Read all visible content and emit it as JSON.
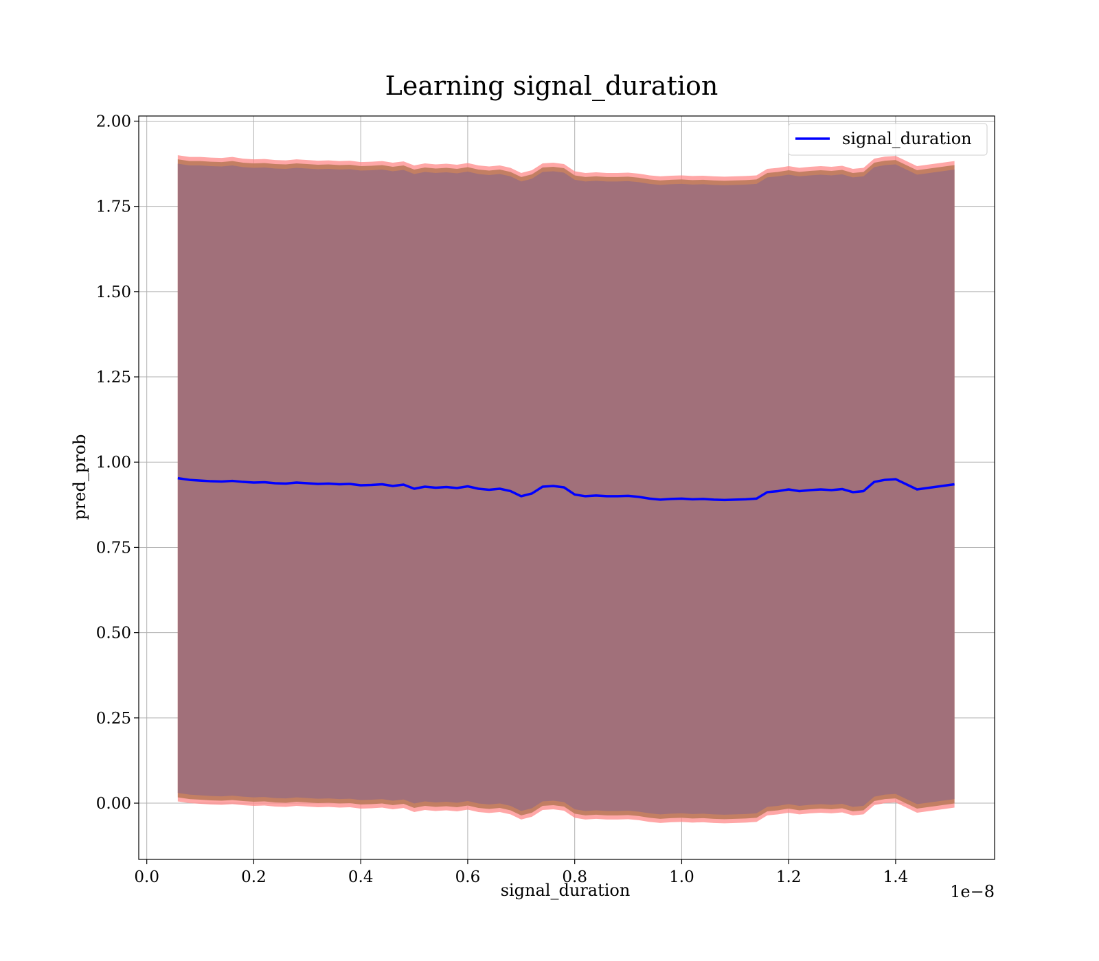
{
  "chart_data": {
    "type": "line",
    "title": "Learning signal_duration",
    "xlabel": "signal_duration",
    "ylabel": "pred_prob",
    "x_offset_label": "1e−8",
    "xlim": [
      -0.015,
      1.585
    ],
    "ylim": [
      -0.165,
      2.015
    ],
    "x_ticks": [
      0.0,
      0.2,
      0.4,
      0.6,
      0.8,
      1.0,
      1.2,
      1.4
    ],
    "x_tick_labels": [
      "0.0",
      "0.2",
      "0.4",
      "0.6",
      "0.8",
      "1.0",
      "1.2",
      "1.4"
    ],
    "y_ticks": [
      0.0,
      0.25,
      0.5,
      0.75,
      1.0,
      1.25,
      1.5,
      1.75,
      2.0
    ],
    "y_tick_labels": [
      "0.00",
      "0.25",
      "0.50",
      "0.75",
      "1.00",
      "1.25",
      "1.50",
      "1.75",
      "2.00"
    ],
    "grid": true,
    "legend_position": "top-right",
    "series": [
      {
        "name": "signal_duration",
        "color": "#0000ff",
        "x": [
          0.058,
          0.08,
          0.1,
          0.12,
          0.14,
          0.16,
          0.18,
          0.2,
          0.22,
          0.24,
          0.26,
          0.28,
          0.3,
          0.32,
          0.34,
          0.36,
          0.38,
          0.4,
          0.42,
          0.44,
          0.46,
          0.48,
          0.5,
          0.52,
          0.54,
          0.56,
          0.58,
          0.6,
          0.62,
          0.64,
          0.66,
          0.68,
          0.7,
          0.72,
          0.74,
          0.76,
          0.78,
          0.8,
          0.82,
          0.84,
          0.86,
          0.88,
          0.9,
          0.92,
          0.94,
          0.96,
          0.98,
          1.0,
          1.02,
          1.04,
          1.06,
          1.08,
          1.1,
          1.12,
          1.14,
          1.16,
          1.18,
          1.2,
          1.22,
          1.24,
          1.26,
          1.28,
          1.3,
          1.32,
          1.34,
          1.36,
          1.38,
          1.4,
          1.44,
          1.51
        ],
        "y": [
          0.953,
          0.948,
          0.946,
          0.944,
          0.943,
          0.945,
          0.942,
          0.94,
          0.941,
          0.938,
          0.937,
          0.94,
          0.938,
          0.936,
          0.937,
          0.935,
          0.936,
          0.932,
          0.933,
          0.935,
          0.93,
          0.934,
          0.922,
          0.928,
          0.925,
          0.927,
          0.924,
          0.929,
          0.922,
          0.919,
          0.922,
          0.915,
          0.9,
          0.908,
          0.928,
          0.93,
          0.926,
          0.905,
          0.9,
          0.902,
          0.9,
          0.9,
          0.901,
          0.898,
          0.893,
          0.89,
          0.892,
          0.893,
          0.891,
          0.892,
          0.89,
          0.889,
          0.89,
          0.891,
          0.893,
          0.912,
          0.915,
          0.92,
          0.915,
          0.918,
          0.92,
          0.918,
          0.921,
          0.912,
          0.915,
          0.942,
          0.948,
          0.95,
          0.92,
          0.935
        ],
        "band_outer_upper": [
          1.9,
          1.895,
          1.895,
          1.893,
          1.892,
          1.895,
          1.89,
          1.888,
          1.889,
          1.886,
          1.885,
          1.888,
          1.886,
          1.884,
          1.885,
          1.883,
          1.884,
          1.88,
          1.881,
          1.883,
          1.878,
          1.882,
          1.87,
          1.876,
          1.873,
          1.875,
          1.872,
          1.877,
          1.87,
          1.867,
          1.87,
          1.863,
          1.848,
          1.856,
          1.876,
          1.878,
          1.874,
          1.853,
          1.848,
          1.85,
          1.848,
          1.848,
          1.849,
          1.846,
          1.841,
          1.838,
          1.84,
          1.841,
          1.839,
          1.84,
          1.838,
          1.837,
          1.838,
          1.839,
          1.841,
          1.86,
          1.863,
          1.868,
          1.863,
          1.866,
          1.868,
          1.866,
          1.869,
          1.86,
          1.863,
          1.89,
          1.896,
          1.898,
          1.868,
          1.883
        ],
        "band_outer_lower": [
          0.005,
          0.0,
          -0.002,
          -0.004,
          -0.005,
          -0.003,
          -0.006,
          -0.008,
          -0.007,
          -0.01,
          -0.011,
          -0.008,
          -0.01,
          -0.012,
          -0.011,
          -0.013,
          -0.012,
          -0.016,
          -0.015,
          -0.013,
          -0.018,
          -0.014,
          -0.026,
          -0.02,
          -0.023,
          -0.021,
          -0.024,
          -0.019,
          -0.026,
          -0.029,
          -0.026,
          -0.033,
          -0.048,
          -0.04,
          -0.02,
          -0.018,
          -0.022,
          -0.043,
          -0.048,
          -0.046,
          -0.048,
          -0.048,
          -0.047,
          -0.05,
          -0.055,
          -0.058,
          -0.056,
          -0.055,
          -0.057,
          -0.056,
          -0.058,
          -0.059,
          -0.058,
          -0.057,
          -0.055,
          -0.036,
          -0.033,
          -0.028,
          -0.033,
          -0.03,
          -0.028,
          -0.03,
          -0.027,
          -0.036,
          -0.033,
          -0.006,
          0.0,
          0.002,
          -0.028,
          -0.013
        ],
        "band_inner_upper": [
          1.875,
          1.87,
          1.87,
          1.868,
          1.867,
          1.87,
          1.865,
          1.863,
          1.864,
          1.861,
          1.86,
          1.863,
          1.861,
          1.859,
          1.86,
          1.858,
          1.859,
          1.855,
          1.856,
          1.858,
          1.853,
          1.857,
          1.845,
          1.851,
          1.848,
          1.85,
          1.847,
          1.852,
          1.845,
          1.842,
          1.845,
          1.838,
          1.823,
          1.831,
          1.851,
          1.853,
          1.849,
          1.828,
          1.823,
          1.825,
          1.823,
          1.823,
          1.824,
          1.821,
          1.816,
          1.813,
          1.815,
          1.816,
          1.814,
          1.815,
          1.813,
          1.812,
          1.813,
          1.814,
          1.816,
          1.835,
          1.838,
          1.843,
          1.838,
          1.841,
          1.843,
          1.841,
          1.844,
          1.835,
          1.838,
          1.865,
          1.871,
          1.873,
          1.843,
          1.858
        ],
        "band_inner_lower": [
          0.03,
          0.025,
          0.023,
          0.021,
          0.02,
          0.022,
          0.019,
          0.017,
          0.018,
          0.015,
          0.014,
          0.017,
          0.015,
          0.013,
          0.014,
          0.012,
          0.013,
          0.009,
          0.01,
          0.012,
          0.007,
          0.011,
          -0.001,
          0.005,
          0.002,
          0.004,
          0.001,
          0.006,
          -0.001,
          -0.004,
          -0.001,
          -0.008,
          -0.023,
          -0.015,
          0.005,
          0.007,
          0.003,
          -0.018,
          -0.023,
          -0.021,
          -0.023,
          -0.023,
          -0.022,
          -0.025,
          -0.03,
          -0.033,
          -0.031,
          -0.03,
          -0.032,
          -0.031,
          -0.033,
          -0.034,
          -0.033,
          -0.032,
          -0.03,
          -0.011,
          -0.008,
          -0.003,
          -0.008,
          -0.005,
          -0.003,
          -0.005,
          -0.002,
          -0.011,
          -0.008,
          0.019,
          0.025,
          0.027,
          -0.003,
          0.012
        ]
      }
    ],
    "band_colors": {
      "outer": "#ff8a8a",
      "middle": "#bd7b5c",
      "inner": "#a1707a"
    }
  }
}
